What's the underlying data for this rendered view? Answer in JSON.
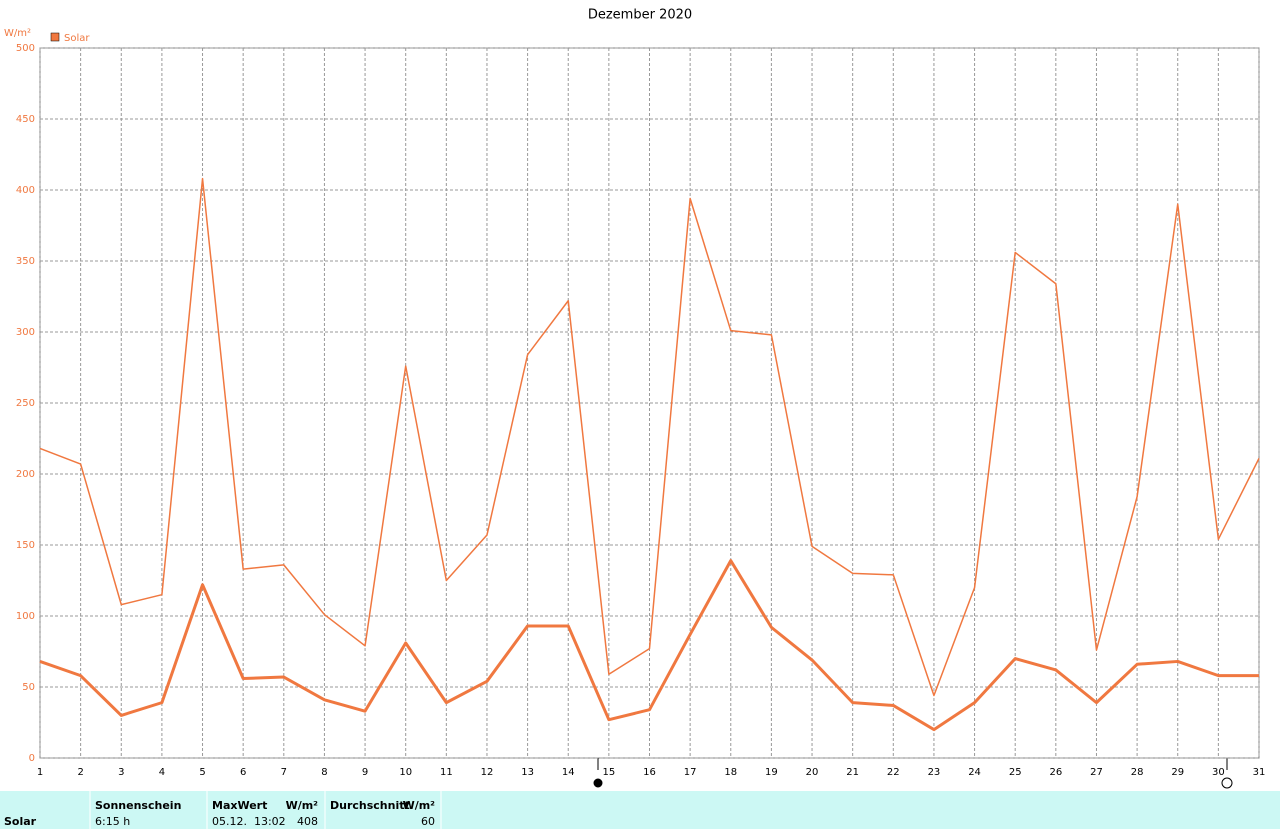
{
  "chart_data": {
    "type": "line",
    "title": "Dezember 2020",
    "y_label": "W/m²",
    "x": [
      1,
      2,
      3,
      4,
      5,
      6,
      7,
      8,
      9,
      10,
      11,
      12,
      13,
      14,
      15,
      16,
      17,
      18,
      19,
      20,
      21,
      22,
      23,
      24,
      25,
      26,
      27,
      28,
      29,
      30,
      31
    ],
    "series": [
      {
        "name": "Solar",
        "color": "#f07840",
        "values": [
          218,
          207,
          108,
          115,
          408,
          133,
          136,
          101,
          79,
          276,
          125,
          157,
          284,
          322,
          59,
          77,
          394,
          301,
          298,
          149,
          130,
          129,
          44,
          120,
          356,
          334,
          76,
          184,
          390,
          154,
          211
        ]
      },
      {
        "color": "#f07840",
        "values": [
          68,
          58,
          30,
          39,
          122,
          56,
          57,
          41,
          33,
          81,
          39,
          54,
          93,
          93,
          27,
          34,
          87,
          139,
          92,
          69,
          39,
          37,
          20,
          39,
          70,
          62,
          39,
          66,
          68,
          58,
          58
        ]
      }
    ],
    "xlim": [
      1,
      31
    ],
    "xticks": [
      1,
      2,
      3,
      4,
      5,
      6,
      7,
      8,
      9,
      10,
      11,
      12,
      13,
      14,
      15,
      16,
      17,
      18,
      19,
      20,
      21,
      22,
      23,
      24,
      25,
      26,
      27,
      28,
      29,
      30,
      31
    ],
    "ylim": [
      0,
      500
    ],
    "yticks": [
      0,
      50,
      100,
      150,
      200,
      250,
      300,
      350,
      400,
      450,
      500
    ],
    "grid": true,
    "legend": "top-left"
  },
  "summary": {
    "row_label": "Solar",
    "columns": [
      {
        "header": "Sonnenschein",
        "value": "6:15 h"
      },
      {
        "header": "MaxWert",
        "unit": "W/m²",
        "date": "05.12.  13:02",
        "value": 408
      },
      {
        "header": "Durchschnitt",
        "unit": "W/m²",
        "value": 60
      }
    ]
  }
}
